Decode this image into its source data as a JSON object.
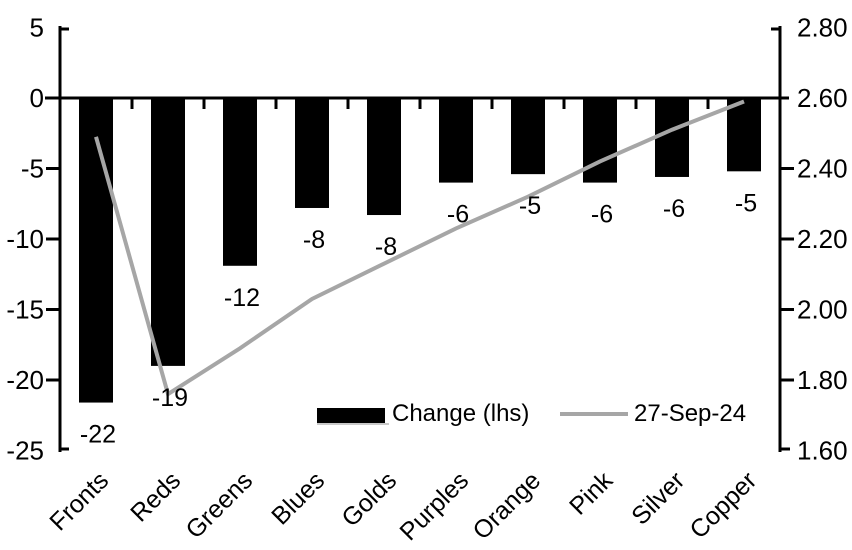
{
  "chart_data": {
    "type": "bar",
    "subtype": "bar+line combo, dual axis",
    "background": "#ffffff",
    "grid": false,
    "categories": [
      "Fronts",
      "Reds",
      "Greens",
      "Blues",
      "Golds",
      "Purples",
      "Orange",
      "Pink",
      "Silver",
      "Copper"
    ],
    "series": [
      {
        "name": "Change (lhs)",
        "kind": "bar",
        "axis": "left",
        "color": "#000000",
        "values": [
          -22,
          -19,
          -12,
          -8,
          -8,
          -6,
          -5,
          -6,
          -6,
          -5
        ],
        "values_precise": [
          -21.6,
          -19.0,
          -11.9,
          -7.8,
          -8.3,
          -6.0,
          -5.4,
          -6.0,
          -5.6,
          -5.2
        ],
        "data_labels": [
          "-22",
          "-19",
          "-12",
          "-8",
          "-8",
          "-6",
          "-5",
          "-6",
          "-6",
          "-5"
        ]
      },
      {
        "name": "27-Sep-24",
        "kind": "line",
        "axis": "right",
        "color": "#a6a6a6",
        "values": [
          2.49,
          1.76,
          1.89,
          2.03,
          2.13,
          2.23,
          2.32,
          2.42,
          2.51,
          2.59
        ]
      }
    ],
    "left_axis": {
      "min": -25,
      "max": 5,
      "tick_labels": [
        "5",
        "0",
        "-5",
        "-10",
        "-15",
        "-20",
        "-25"
      ]
    },
    "right_axis": {
      "min": 1.6,
      "max": 2.8,
      "tick_labels": [
        "2.80",
        "2.60",
        "2.40",
        "2.20",
        "2.00",
        "1.80",
        "1.60"
      ]
    },
    "legend": {
      "position": "bottom-center",
      "items": [
        {
          "label": "Change (lhs)",
          "swatch": "bar",
          "color": "#000000"
        },
        {
          "label": "27-Sep-24",
          "swatch": "line",
          "color": "#a6a6a6"
        }
      ]
    }
  }
}
